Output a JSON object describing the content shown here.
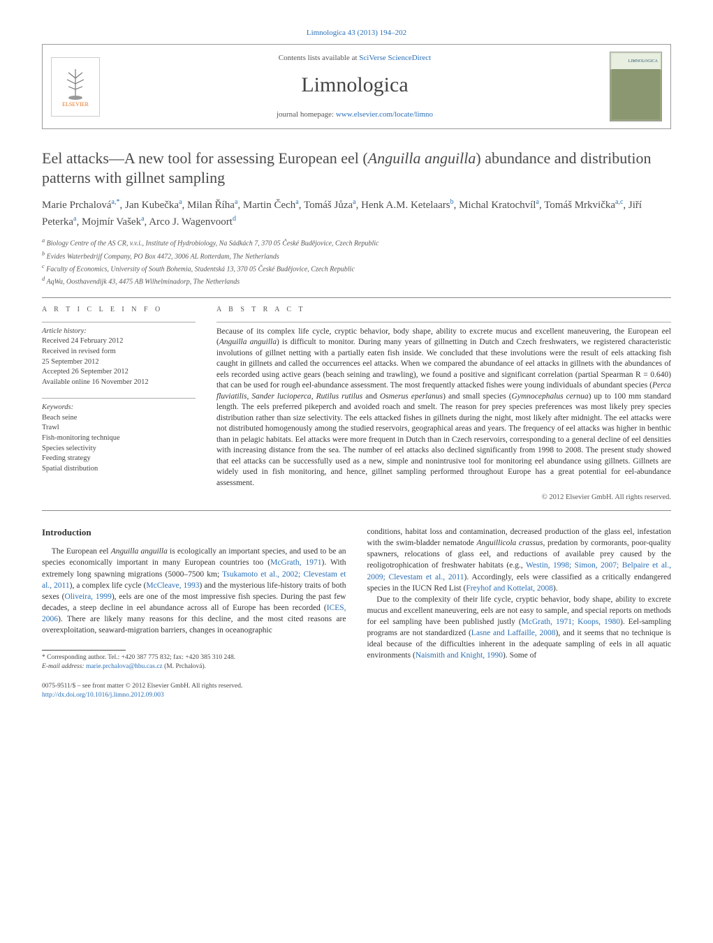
{
  "header": {
    "citation": "Limnologica 43 (2013) 194–202",
    "contents_prefix": "Contents lists available at ",
    "contents_link": "SciVerse ScienceDirect",
    "journal_title": "Limnologica",
    "homepage_prefix": "journal homepage: ",
    "homepage_link": "www.elsevier.com/locate/limno",
    "publisher_logo_label": "ELSEVIER",
    "cover_label": "LIMNOLOGICA"
  },
  "article": {
    "title_pre": "Eel attacks—A new tool for assessing European eel (",
    "title_species": "Anguilla anguilla",
    "title_post": ") abundance and distribution patterns with gillnet sampling",
    "authors_html": "Marie Prchalová",
    "authors": [
      {
        "name": "Marie Prchalová",
        "aff": "a,",
        "corr": "*"
      },
      {
        "name": "Jan Kubečka",
        "aff": "a"
      },
      {
        "name": "Milan Říha",
        "aff": "a"
      },
      {
        "name": "Martin Čech",
        "aff": "a"
      },
      {
        "name": "Tomáš Jůza",
        "aff": "a"
      },
      {
        "name": "Henk A.M. Ketelaars",
        "aff": "b"
      },
      {
        "name": "Michal Kratochvíl",
        "aff": "a"
      },
      {
        "name": "Tomáš Mrkvička",
        "aff": "a,c"
      },
      {
        "name": "Jiří Peterka",
        "aff": "a"
      },
      {
        "name": "Mojmír Vašek",
        "aff": "a"
      },
      {
        "name": "Arco J. Wagenvoort",
        "aff": "d"
      }
    ],
    "affiliations": [
      {
        "key": "a",
        "text": "Biology Centre of the AS CR, v.v.i., Institute of Hydrobiology, Na Sádkách 7, 370 05 České Budějovice, Czech Republic"
      },
      {
        "key": "b",
        "text": "Evides Waterbedrijf Company, PO Box 4472, 3006 AL Rotterdam, The Netherlands"
      },
      {
        "key": "c",
        "text": "Faculty of Economics, University of South Bohemia, Studentská 13, 370 05 České Budějovice, Czech Republic"
      },
      {
        "key": "d",
        "text": "AqWa, Oosthavendijk 43, 4475 AB Wilhelminadorp, The Netherlands"
      }
    ]
  },
  "meta": {
    "article_info_label": "a r t i c l e   i n f o",
    "abstract_label": "a b s t r a c t",
    "history_label": "Article history:",
    "history": [
      "Received 24 February 2012",
      "Received in revised form",
      "25 September 2012",
      "Accepted 26 September 2012",
      "Available online 16 November 2012"
    ],
    "keywords_label": "Keywords:",
    "keywords": [
      "Beach seine",
      "Trawl",
      "Fish-monitoring technique",
      "Species selectivity",
      "Feeding strategy",
      "Spatial distribution"
    ],
    "abstract": "Because of its complex life cycle, cryptic behavior, body shape, ability to excrete mucus and excellent maneuvering, the European eel (Anguilla anguilla) is difficult to monitor. During many years of gillnetting in Dutch and Czech freshwaters, we registered characteristic involutions of gillnet netting with a partially eaten fish inside. We concluded that these involutions were the result of eels attacking fish caught in gillnets and called the occurrences eel attacks. When we compared the abundance of eel attacks in gillnets with the abundances of eels recorded using active gears (beach seining and trawling), we found a positive and significant correlation (partial Spearman R = 0.640) that can be used for rough eel-abundance assessment. The most frequently attacked fishes were young individuals of abundant species (Perca fluviatilis, Sander lucioperca, Rutilus rutilus and Osmerus eperlanus) and small species (Gymnocephalus cernua) up to 100 mm standard length. The eels preferred pikeperch and avoided roach and smelt. The reason for prey species preferences was most likely prey species distribution rather than size selectivity. The eels attacked fishes in gillnets during the night, most likely after midnight. The eel attacks were not distributed homogenously among the studied reservoirs, geographical areas and years. The frequency of eel attacks was higher in benthic than in pelagic habitats. Eel attacks were more frequent in Dutch than in Czech reservoirs, corresponding to a general decline of eel densities with increasing distance from the sea. The number of eel attacks also declined significantly from 1998 to 2008. The present study showed that eel attacks can be successfully used as a new, simple and nonintrusive tool for monitoring eel abundance using gillnets. Gillnets are widely used in fish monitoring, and hence, gillnet sampling performed throughout Europe has a great potential for eel-abundance assessment.",
    "copyright": "© 2012 Elsevier GmbH. All rights reserved."
  },
  "body": {
    "intro_heading": "Introduction",
    "intro_p1_a": "The European eel ",
    "intro_p1_species": "Anguilla anguilla",
    "intro_p1_b": " is ecologically an important species, and used to be an species economically important in many European countries too (",
    "intro_p1_ref1": "McGrath, 1971",
    "intro_p1_c": "). With extremely long spawning migrations (5000–7500 km; ",
    "intro_p1_ref2": "Tsukamoto et al., 2002; Clevestam et al., 2011",
    "intro_p1_d": "), a complex life cycle (",
    "intro_p1_ref3": "McCleave, 1993",
    "intro_p1_e": ") and the mysterious life-history traits of both sexes (",
    "intro_p1_ref4": "Oliveira, 1999",
    "intro_p1_f": "), eels are one of the most impressive fish species. During the past few decades, a steep decline in eel abundance across all of Europe has been recorded (",
    "intro_p1_ref5": "ICES, 2006",
    "intro_p1_g": "). There are likely many reasons for this decline, and the most cited reasons are overexploitation, seaward-migration barriers, changes in oceanographic",
    "col2_p1_a": "conditions, habitat loss and contamination, decreased production of the glass eel, infestation with the swim-bladder nematode ",
    "col2_p1_species": "Anguillicola crassus",
    "col2_p1_b": ", predation by cormorants, poor-quality spawners, relocations of glass eel, and reductions of available prey caused by the reoligotrophication of freshwater habitats (e.g., ",
    "col2_p1_ref1": "Westin, 1998; Simon, 2007; Belpaire et al., 2009; Clevestam et al., 2011",
    "col2_p1_c": "). Accordingly, eels were classified as a critically endangered species in the IUCN Red List (",
    "col2_p1_ref2": "Freyhof and Kottelat, 2008",
    "col2_p1_d": ").",
    "col2_p2_a": "Due to the complexity of their life cycle, cryptic behavior, body shape, ability to excrete mucus and excellent maneuvering, eels are not easy to sample, and special reports on methods for eel sampling have been published justly (",
    "col2_p2_ref1": "McGrath, 1971; Koops, 1980",
    "col2_p2_b": "). Eel-sampling programs are not standardized (",
    "col2_p2_ref2": "Lasne and Laffaille, 2008",
    "col2_p2_c": "), and it seems that no technique is ideal because of the difficulties inherent in the adequate sampling of eels in all aquatic environments (",
    "col2_p2_ref3": "Naismith and Knight, 1990",
    "col2_p2_d": "). Some of"
  },
  "footnote": {
    "corr_label": "* Corresponding author. Tel.: +420 387 775 832; fax: +420 385 310 248.",
    "email_label": "E-mail address: ",
    "email": "marie.prchalova@hbu.cas.cz",
    "email_who": " (M. Prchalová)."
  },
  "footer": {
    "issn_line": "0075-9511/$ – see front matter © 2012 Elsevier GmbH. All rights reserved.",
    "doi_label": "http://dx.doi.org/10.1016/j.limno.2012.09.003"
  },
  "colors": {
    "link": "#2a6fb5",
    "text": "#333333",
    "muted": "#666666",
    "rule": "#888888",
    "elsevier_orange": "#e9711c"
  }
}
